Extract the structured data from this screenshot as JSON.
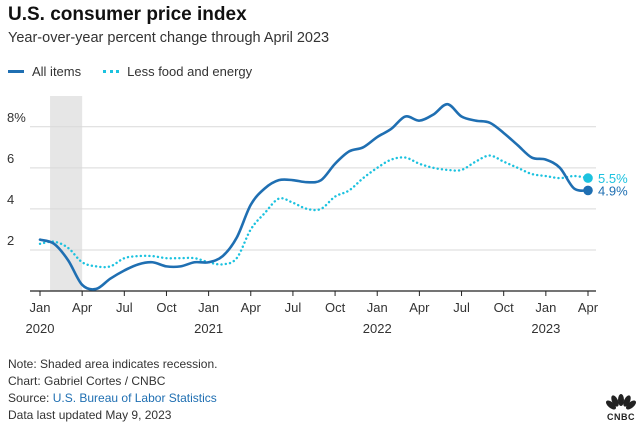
{
  "header": {
    "title": "U.S. consumer price index",
    "subtitle": "Year-over-year percent change through April 2023"
  },
  "legend": {
    "items": [
      {
        "label": "All items",
        "color": "#1f6fb2",
        "style": "solid"
      },
      {
        "label": "Less food and energy",
        "color": "#1cc2df",
        "style": "dotted"
      }
    ]
  },
  "chart_data": {
    "type": "line",
    "x": [
      "2020-01",
      "2020-02",
      "2020-03",
      "2020-04",
      "2020-05",
      "2020-06",
      "2020-07",
      "2020-08",
      "2020-09",
      "2020-10",
      "2020-11",
      "2020-12",
      "2021-01",
      "2021-02",
      "2021-03",
      "2021-04",
      "2021-05",
      "2021-06",
      "2021-07",
      "2021-08",
      "2021-09",
      "2021-10",
      "2021-11",
      "2021-12",
      "2022-01",
      "2022-02",
      "2022-03",
      "2022-04",
      "2022-05",
      "2022-06",
      "2022-07",
      "2022-08",
      "2022-09",
      "2022-10",
      "2022-11",
      "2022-12",
      "2023-01",
      "2023-02",
      "2023-03",
      "2023-04"
    ],
    "series": [
      {
        "name": "All items",
        "color": "#1f6fb2",
        "style": "solid",
        "values": [
          2.5,
          2.3,
          1.5,
          0.3,
          0.1,
          0.6,
          1.0,
          1.3,
          1.4,
          1.2,
          1.2,
          1.4,
          1.4,
          1.7,
          2.6,
          4.2,
          5.0,
          5.4,
          5.4,
          5.3,
          5.4,
          6.2,
          6.8,
          7.0,
          7.5,
          7.9,
          8.5,
          8.3,
          8.6,
          9.1,
          8.5,
          8.3,
          8.2,
          7.7,
          7.1,
          6.5,
          6.4,
          6.0,
          5.0,
          4.9
        ],
        "end_label": "4.9%"
      },
      {
        "name": "Less food and energy",
        "color": "#1cc2df",
        "style": "dotted",
        "values": [
          2.3,
          2.4,
          2.1,
          1.4,
          1.2,
          1.2,
          1.6,
          1.7,
          1.7,
          1.6,
          1.6,
          1.6,
          1.4,
          1.3,
          1.6,
          3.0,
          3.8,
          4.5,
          4.3,
          4.0,
          4.0,
          4.6,
          4.9,
          5.5,
          6.0,
          6.4,
          6.5,
          6.2,
          6.0,
          5.9,
          5.9,
          6.3,
          6.6,
          6.3,
          6.0,
          5.7,
          5.6,
          5.5,
          5.6,
          5.5
        ],
        "end_label": "5.5%"
      }
    ],
    "ylim": [
      0,
      9.5
    ],
    "y_ticks": [
      {
        "value": 2,
        "label": "2"
      },
      {
        "value": 4,
        "label": "4"
      },
      {
        "value": 6,
        "label": "6"
      },
      {
        "value": 8,
        "label": "8%"
      }
    ],
    "x_ticks": [
      {
        "date": "2020-01",
        "label": "Jan",
        "year": "2020"
      },
      {
        "date": "2020-04",
        "label": "Apr",
        "year": ""
      },
      {
        "date": "2020-07",
        "label": "Jul",
        "year": ""
      },
      {
        "date": "2020-10",
        "label": "Oct",
        "year": ""
      },
      {
        "date": "2021-01",
        "label": "Jan",
        "year": "2021"
      },
      {
        "date": "2021-04",
        "label": "Apr",
        "year": ""
      },
      {
        "date": "2021-07",
        "label": "Jul",
        "year": ""
      },
      {
        "date": "2021-10",
        "label": "Oct",
        "year": ""
      },
      {
        "date": "2022-01",
        "label": "Jan",
        "year": "2022"
      },
      {
        "date": "2022-04",
        "label": "Apr",
        "year": ""
      },
      {
        "date": "2022-07",
        "label": "Jul",
        "year": ""
      },
      {
        "date": "2022-10",
        "label": "Oct",
        "year": ""
      },
      {
        "date": "2023-01",
        "label": "Jan",
        "year": "2023"
      },
      {
        "date": "2023-04",
        "label": "Apr",
        "year": ""
      }
    ],
    "recession": {
      "start": "2020-02",
      "end": "2020-04",
      "color": "#e6e6e6"
    },
    "grid": true,
    "legend_position": "top-left"
  },
  "footer": {
    "note": "Note: Shaded area indicates recession.",
    "credit": "Chart: Gabriel Cortes / CNBC",
    "source_prefix": "Source: ",
    "source_link": "U.S. Bureau of Labor Statistics",
    "updated": "Data last updated May 9, 2023"
  },
  "logo": {
    "text": "CNBC",
    "icon": "peacock-logo-icon"
  }
}
